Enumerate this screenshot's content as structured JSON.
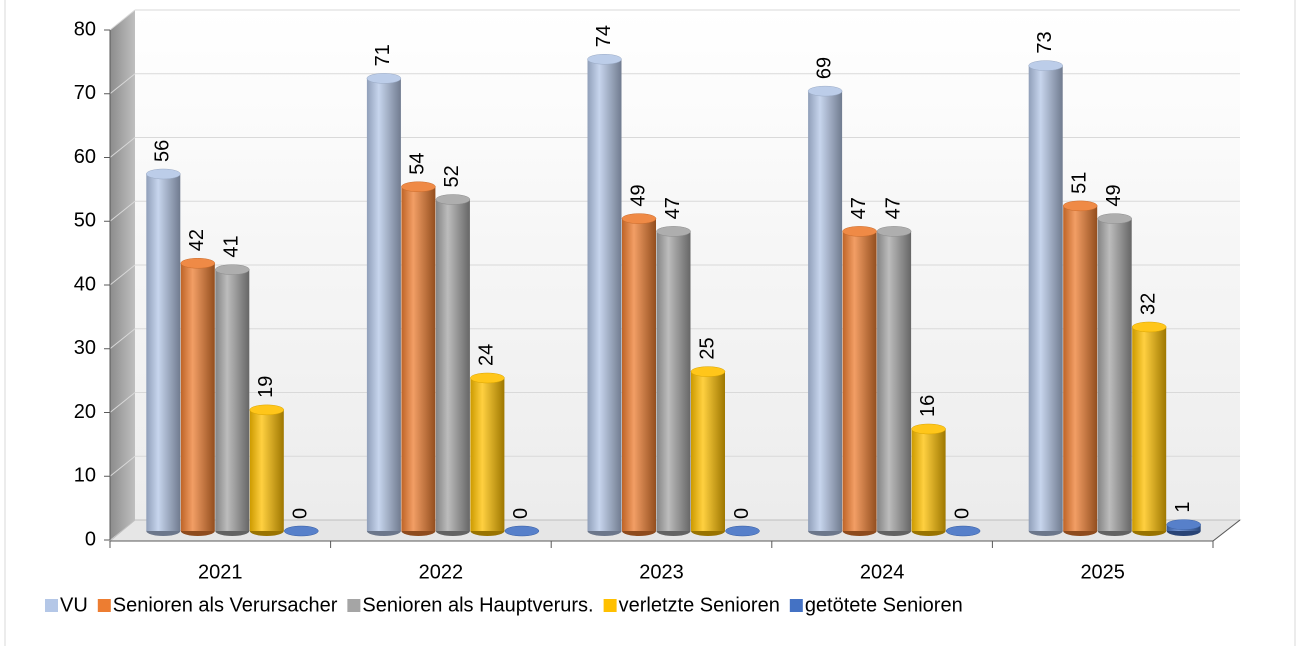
{
  "chart_data": {
    "type": "bar3d",
    "categories": [
      "2021",
      "2022",
      "2023",
      "2024",
      "2025"
    ],
    "series": [
      {
        "name": "VU",
        "color": "#b4c7e7",
        "values": [
          56,
          71,
          74,
          69,
          73
        ]
      },
      {
        "name": "Senioren als Verursacher",
        "color": "#ed7d31",
        "values": [
          42,
          54,
          49,
          47,
          51
        ]
      },
      {
        "name": "Senioren als Hauptverurs.",
        "color": "#a5a5a5",
        "values": [
          41,
          52,
          47,
          47,
          49
        ]
      },
      {
        "name": "verletzte Senioren",
        "color": "#ffc000",
        "values": [
          19,
          24,
          25,
          16,
          32
        ]
      },
      {
        "name": "getötete Senioren",
        "color": "#4472c4",
        "values": [
          0,
          0,
          0,
          0,
          1
        ]
      }
    ],
    "ylim": [
      0,
      80
    ],
    "yticks": [
      0,
      10,
      20,
      30,
      40,
      50,
      60,
      70,
      80
    ],
    "grid": true,
    "legend": "bottom"
  }
}
